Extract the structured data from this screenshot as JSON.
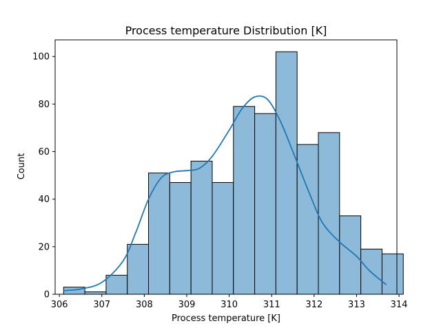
{
  "chart_data": {
    "type": "bar",
    "subtype": "histogram-with-kde",
    "title": "Process temperature Distribution  [K]",
    "xlabel": "Process temperature [K]",
    "ylabel": "Count",
    "xlim": [
      305.9,
      313.95
    ],
    "ylim": [
      0,
      107
    ],
    "xticks": [
      306,
      307,
      308,
      309,
      310,
      311,
      312,
      313,
      314
    ],
    "yticks": [
      0,
      20,
      40,
      60,
      80,
      100
    ],
    "grid": false,
    "bins": [
      {
        "x0": 306.1,
        "x1": 306.6,
        "count": 3
      },
      {
        "x0": 306.6,
        "x1": 307.1,
        "count": 1
      },
      {
        "x0": 307.1,
        "x1": 307.6,
        "count": 8
      },
      {
        "x0": 307.6,
        "x1": 308.1,
        "count": 21
      },
      {
        "x0": 308.1,
        "x1": 308.6,
        "count": 51
      },
      {
        "x0": 308.6,
        "x1": 309.1,
        "count": 47
      },
      {
        "x0": 309.1,
        "x1": 309.6,
        "count": 56
      },
      {
        "x0": 309.6,
        "x1": 310.1,
        "count": 47
      },
      {
        "x0": 310.1,
        "x1": 310.6,
        "count": 79
      },
      {
        "x0": 310.6,
        "x1": 311.1,
        "count": 76
      },
      {
        "x0": 311.1,
        "x1": 311.6,
        "count": 102
      },
      {
        "x0": 311.6,
        "x1": 312.1,
        "count": 63
      },
      {
        "x0": 312.1,
        "x1": 312.6,
        "count": 68
      },
      {
        "x0": 312.6,
        "x1": 313.1,
        "count": 33
      },
      {
        "x0": 313.1,
        "x1": 313.6,
        "count": 19
      },
      {
        "x0": 313.6,
        "x1": 314.1,
        "count": 17
      }
    ],
    "kde": {
      "x": [
        306.1,
        306.5,
        307.0,
        307.5,
        307.8,
        308.1,
        308.4,
        308.7,
        309.0,
        309.3,
        309.6,
        310.0,
        310.3,
        310.6,
        310.9,
        311.2,
        311.5,
        311.9,
        312.2,
        312.6,
        313.0,
        313.3,
        313.7
      ],
      "y": [
        1.5,
        2.2,
        5,
        14,
        26,
        40,
        49,
        51.5,
        52,
        53,
        58,
        69,
        78,
        83,
        82,
        73,
        60,
        42,
        30,
        22,
        16,
        10,
        4
      ]
    },
    "colors": {
      "bar_fill": "#8ebad9",
      "bar_edge": "#000000",
      "kde_line": "#1f77b4"
    }
  }
}
